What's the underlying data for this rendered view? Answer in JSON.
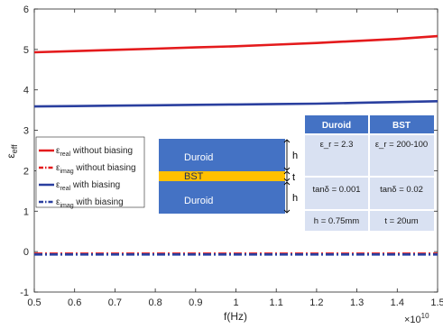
{
  "chart_data": {
    "type": "line",
    "xlabel": "f(Hz)",
    "ylabel": "ε_eff",
    "x_exponent_label": "×10",
    "x_exponent_power": "10",
    "xlim": [
      0.5,
      1.5
    ],
    "ylim": [
      -1,
      6
    ],
    "x_ticks": [
      "0.5",
      "0.6",
      "0.7",
      "0.8",
      "0.9",
      "1",
      "1.1",
      "1.2",
      "1.3",
      "1.4",
      "1.5"
    ],
    "y_ticks": [
      "-1",
      "0",
      "1",
      "2",
      "3",
      "4",
      "5",
      "6"
    ],
    "grid": false,
    "legend_position": "left",
    "series": [
      {
        "name_symbol": "ε",
        "name_sub": "real",
        "name_rest": " without biasing",
        "color": "#e41a1c",
        "line": "solid",
        "x": [
          0.5,
          0.6,
          0.7,
          0.8,
          0.9,
          1.0,
          1.1,
          1.2,
          1.3,
          1.4,
          1.5
        ],
        "values": [
          4.93,
          4.96,
          4.99,
          5.02,
          5.05,
          5.08,
          5.12,
          5.16,
          5.21,
          5.26,
          5.33
        ]
      },
      {
        "name_symbol": "ε",
        "name_sub": "imag",
        "name_rest": " without biasing",
        "color": "#e41a1c",
        "line": "dashdot",
        "x": [
          0.5,
          1.5
        ],
        "values": [
          -0.05,
          -0.05
        ]
      },
      {
        "name_symbol": "ε",
        "name_sub": "real",
        "name_rest": " with biasing",
        "color": "#2a3f9f",
        "line": "solid",
        "x": [
          0.5,
          0.6,
          0.7,
          0.8,
          0.9,
          1.0,
          1.1,
          1.2,
          1.3,
          1.4,
          1.5
        ],
        "values": [
          3.59,
          3.6,
          3.61,
          3.62,
          3.63,
          3.64,
          3.65,
          3.66,
          3.68,
          3.7,
          3.72
        ]
      },
      {
        "name_symbol": "ε",
        "name_sub": "imag",
        "name_rest": " with biasing",
        "color": "#2a3f9f",
        "line": "dashdot",
        "x": [
          0.5,
          1.5
        ],
        "values": [
          -0.07,
          -0.07
        ]
      }
    ]
  },
  "inset": {
    "layers": {
      "top": "Duroid",
      "middle": "BST",
      "bottom": "Duroid"
    },
    "dimensions": {
      "h_top": "h",
      "t": "t",
      "h_bottom": "h"
    },
    "table": {
      "headers": [
        "Duroid",
        "BST"
      ],
      "rows": [
        [
          "ε_r = 2.3",
          "ε_r = 200-100"
        ],
        [
          "tanδ = 0.001",
          "tanδ = 0.02"
        ],
        [
          "h = 0.75mm",
          "t = 20um"
        ]
      ]
    },
    "colors": {
      "substrate": "#4472c4",
      "bst_layer": "#ffc000",
      "table_header": "#4472c4",
      "table_row": "#d9e1f2"
    }
  }
}
